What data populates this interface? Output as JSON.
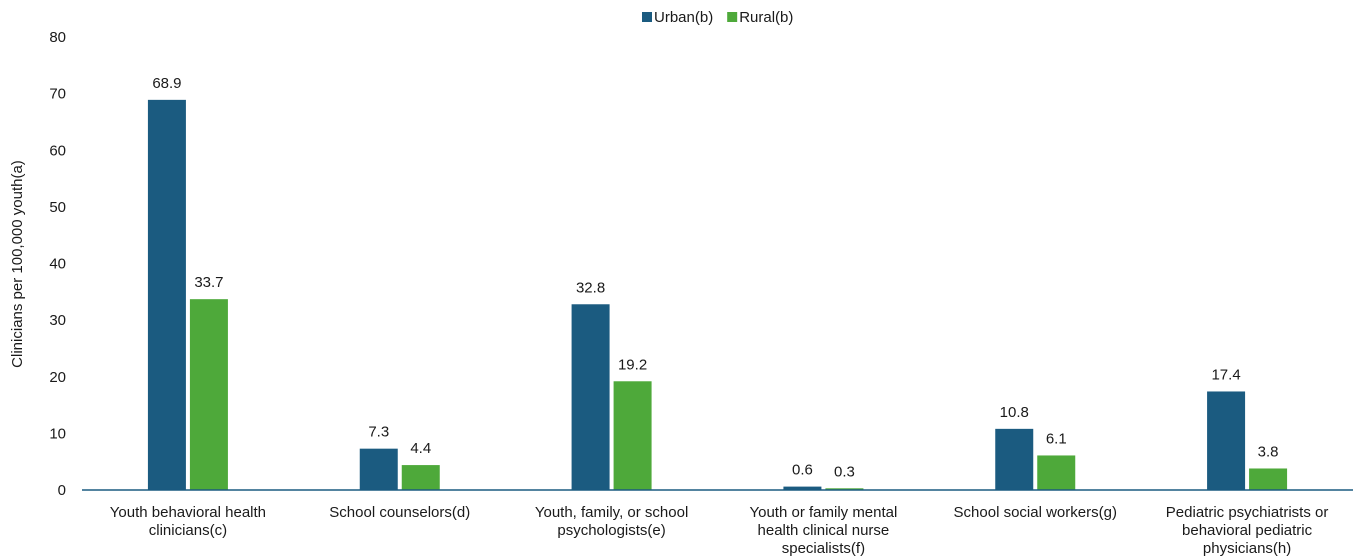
{
  "chart_data": {
    "type": "bar",
    "title": "",
    "xlabel": "",
    "ylabel": "Clinicians per 100,000 youth(a)",
    "ylim": [
      0,
      80
    ],
    "yticks": [
      0,
      10,
      20,
      30,
      40,
      50,
      60,
      70,
      80
    ],
    "grid": false,
    "legend_position": "top-center",
    "categories": [
      [
        "Youth behavioral health",
        "clinicians(c)"
      ],
      [
        "School counselors(d)"
      ],
      [
        "Youth, family, or school",
        "psychologists(e)"
      ],
      [
        "Youth or family mental",
        "health clinical nurse",
        "specialists(f)"
      ],
      [
        "School social workers(g)"
      ],
      [
        "Pediatric psychiatrists or",
        "behavioral pediatric",
        "physicians(h)"
      ]
    ],
    "series": [
      {
        "name": "Urban(b)",
        "color": "#1b5b80",
        "values": [
          68.9,
          7.3,
          32.8,
          0.6,
          10.8,
          17.4
        ]
      },
      {
        "name": "Rural(b)",
        "color": "#4ea93a",
        "values": [
          33.7,
          4.4,
          19.2,
          0.3,
          6.1,
          3.8
        ]
      }
    ]
  }
}
